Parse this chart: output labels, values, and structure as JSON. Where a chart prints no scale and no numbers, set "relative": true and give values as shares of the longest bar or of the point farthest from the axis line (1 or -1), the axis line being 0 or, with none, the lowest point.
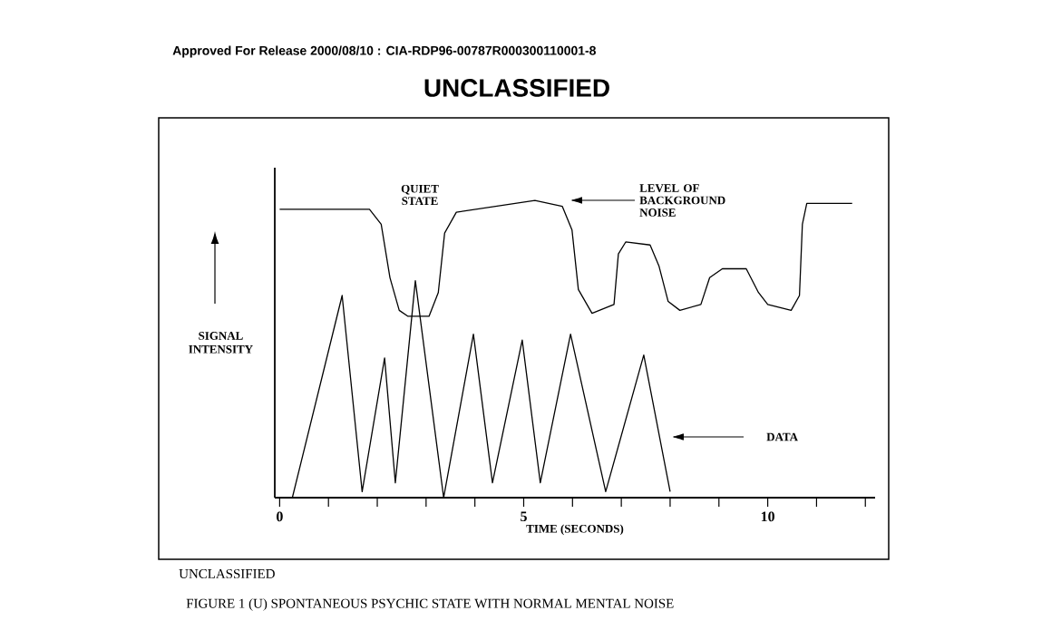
{
  "chart_data": {
    "type": "line",
    "title": "FIGURE 1    (U) SPONTANEOUS PSYCHIC STATE WITH NORMAL MENTAL NOISE",
    "xlabel": "TIME (SECONDS)",
    "ylabel": "SIGNAL INTENSITY",
    "relative": true,
    "marker": "none",
    "grid": false,
    "xlim": [
      -0.1,
      12.2
    ],
    "xticks": [
      0,
      {
        "value": 1,
        "label": null
      },
      {
        "value": 2,
        "label": null
      },
      {
        "value": 3,
        "label": null
      },
      {
        "value": 4,
        "label": null
      },
      5,
      {
        "value": 6,
        "label": null
      },
      {
        "value": 7,
        "label": null
      },
      {
        "value": 8,
        "label": null
      },
      {
        "value": 9,
        "label": null
      },
      10,
      {
        "value": 11,
        "label": null
      },
      {
        "value": 12,
        "label": null
      }
    ],
    "series": [
      {
        "color": "#000000",
        "x": [
          0,
          1.84,
          2.08,
          2.26,
          2.45,
          2.63,
          3.06,
          3.25,
          3.38,
          3.62,
          5.23,
          5.79,
          5.99,
          6.12,
          6.4,
          6.85,
          6.94,
          7.09,
          7.59,
          7.77,
          7.96,
          8.2,
          8.63,
          8.81,
          9.07,
          9.56,
          9.81,
          10.0,
          10.48,
          10.65,
          10.71,
          10.8,
          11.73
        ],
        "values": [
          0.97,
          0.97,
          0.92,
          0.74,
          0.63,
          0.61,
          0.61,
          0.69,
          0.89,
          0.96,
          1.0,
          0.98,
          0.9,
          0.7,
          0.62,
          0.65,
          0.82,
          0.86,
          0.85,
          0.78,
          0.66,
          0.63,
          0.65,
          0.74,
          0.77,
          0.77,
          0.69,
          0.65,
          0.63,
          0.68,
          0.92,
          0.99,
          0.99
        ]
      },
      {
        "color": "#000000",
        "x": [
          0.26,
          1.28,
          1.69,
          2.15,
          2.37,
          2.78,
          3.36,
          3.97,
          4.36,
          4.97,
          5.34,
          5.96,
          6.68,
          7.46,
          8.0
        ],
        "values": [
          0,
          0.68,
          0.02,
          0.47,
          0.05,
          0.73,
          0,
          0.55,
          0.05,
          0.53,
          0.05,
          0.55,
          0.02,
          0.48,
          0.02
        ]
      }
    ],
    "annotations": [
      "Approved For Release 2000/08/10 : CIA-RDP96-00787R000300110001-8",
      "UNCLASSIFIED",
      "QUIET STATE",
      "LEVEL OF BACKGROUND NOISE",
      "DATA",
      "UNCLASSIFIED"
    ]
  }
}
